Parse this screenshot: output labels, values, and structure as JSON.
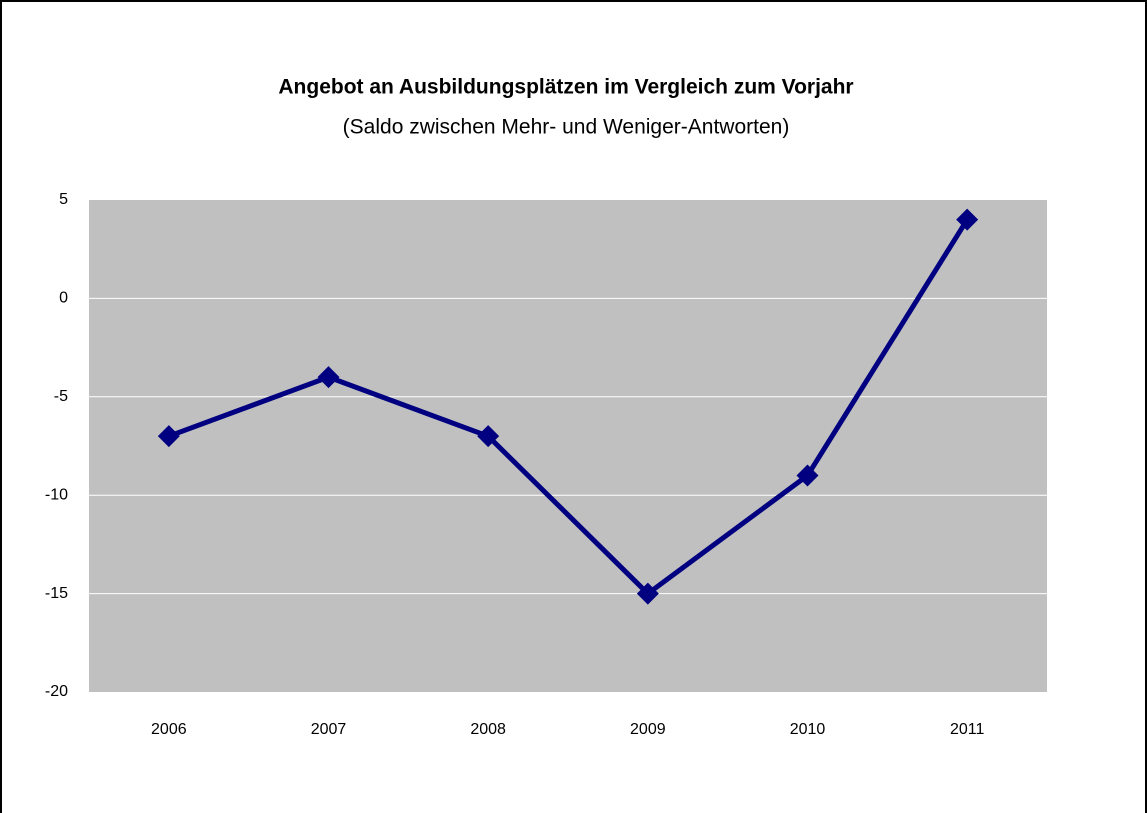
{
  "chart_data": {
    "type": "line",
    "title": "Angebot an Ausbildungsplätzen im Vergleich zum Vorjahr",
    "subtitle": "(Saldo zwischen Mehr- und Weniger-Antworten)",
    "categories": [
      "2006",
      "2007",
      "2008",
      "2009",
      "2010",
      "2011"
    ],
    "values": [
      -7,
      -4,
      -7,
      -15,
      -9,
      4
    ],
    "color": "#000080",
    "plot_background": "#c0c0c0",
    "ylim": [
      -20,
      5
    ],
    "yticks": [
      -20,
      -15,
      -10,
      -5,
      0,
      5
    ],
    "grid": true
  }
}
